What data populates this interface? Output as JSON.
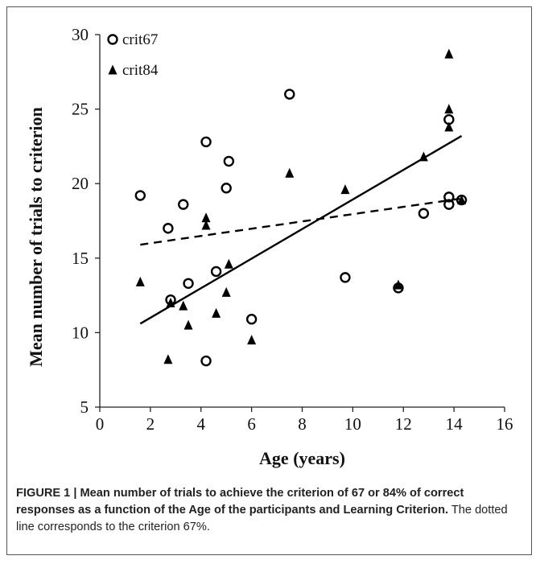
{
  "chart_data": {
    "type": "scatter",
    "title": "",
    "xlabel": "Age (years)",
    "ylabel": "Mean number of trials to criterion",
    "xlim": [
      0,
      16
    ],
    "ylim": [
      5,
      30
    ],
    "xticks": [
      "0",
      "2",
      "4",
      "6",
      "8",
      "10",
      "12",
      "14",
      "16"
    ],
    "yticks": [
      "5",
      "10",
      "15",
      "20",
      "25",
      "30"
    ],
    "grid": false,
    "legend_position": "top-left",
    "series": [
      {
        "name": "crit67",
        "marker": "open-circle",
        "color": "#000000",
        "points": [
          [
            1.6,
            19.2
          ],
          [
            2.7,
            17.0
          ],
          [
            2.8,
            12.2
          ],
          [
            3.3,
            18.6
          ],
          [
            3.5,
            13.3
          ],
          [
            4.2,
            22.8
          ],
          [
            4.2,
            8.1
          ],
          [
            4.6,
            14.1
          ],
          [
            5.0,
            19.7
          ],
          [
            5.1,
            21.5
          ],
          [
            6.0,
            10.9
          ],
          [
            7.5,
            26.0
          ],
          [
            9.7,
            13.7
          ],
          [
            11.8,
            13.0
          ],
          [
            12.8,
            18.0
          ],
          [
            13.8,
            24.3
          ],
          [
            13.8,
            19.1
          ],
          [
            13.8,
            18.6
          ],
          [
            14.3,
            18.9
          ]
        ],
        "trendline": {
          "style": "dashed",
          "from": [
            1.6,
            15.9
          ],
          "to": [
            14.3,
            19.0
          ]
        }
      },
      {
        "name": "crit84",
        "marker": "filled-triangle",
        "color": "#000000",
        "points": [
          [
            1.6,
            13.4
          ],
          [
            2.7,
            8.2
          ],
          [
            2.8,
            12.0
          ],
          [
            3.3,
            11.8
          ],
          [
            3.5,
            10.5
          ],
          [
            4.2,
            17.7
          ],
          [
            4.2,
            17.2
          ],
          [
            4.6,
            11.3
          ],
          [
            5.0,
            12.7
          ],
          [
            5.1,
            14.6
          ],
          [
            6.0,
            9.5
          ],
          [
            7.5,
            20.7
          ],
          [
            9.7,
            19.6
          ],
          [
            11.8,
            13.2
          ],
          [
            12.8,
            21.8
          ],
          [
            13.8,
            28.7
          ],
          [
            13.8,
            25.0
          ],
          [
            13.8,
            23.8
          ],
          [
            14.3,
            18.9
          ]
        ],
        "trendline": {
          "style": "solid",
          "from": [
            1.6,
            10.6
          ],
          "to": [
            14.3,
            23.2
          ]
        }
      }
    ]
  },
  "caption": {
    "label": "FIGURE 1 | Mean number of trials to achieve the criterion of 67 or 84% of correct responses as a function of the Age of the participants and Learning Criterion.",
    "text": " The dotted line corresponds to the criterion 67%."
  }
}
